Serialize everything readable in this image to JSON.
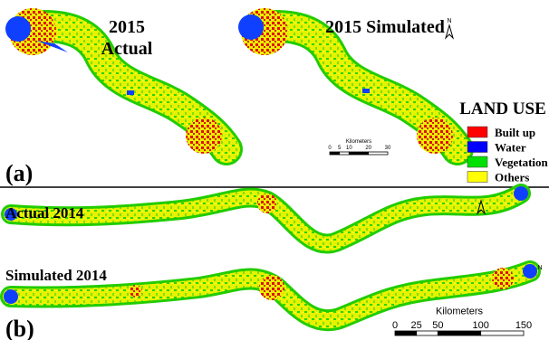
{
  "panel_a": {
    "label": "(a)",
    "maps": [
      {
        "title": [
          "2015",
          "Actual"
        ]
      },
      {
        "title": [
          "2015 Simulated"
        ]
      }
    ],
    "north": "N",
    "scale": {
      "unit": "Kilometers",
      "ticks": [
        0,
        5,
        10,
        20,
        30
      ]
    },
    "legend": {
      "title": "LAND USE",
      "items": [
        {
          "label": "Built up",
          "color": "#ff0000"
        },
        {
          "label": "Water",
          "color": "#0000ff"
        },
        {
          "label": "Vegetation",
          "color": "#00e000"
        },
        {
          "label": "Others",
          "color": "#ffff00"
        }
      ]
    }
  },
  "panel_b": {
    "label": "(b)",
    "maps": [
      {
        "title": "Actual 2014"
      },
      {
        "title": "Simulated 2014"
      }
    ],
    "north": "N",
    "scale": {
      "unit": "Kilometers",
      "ticks": [
        0,
        25,
        50,
        100,
        150
      ]
    }
  }
}
